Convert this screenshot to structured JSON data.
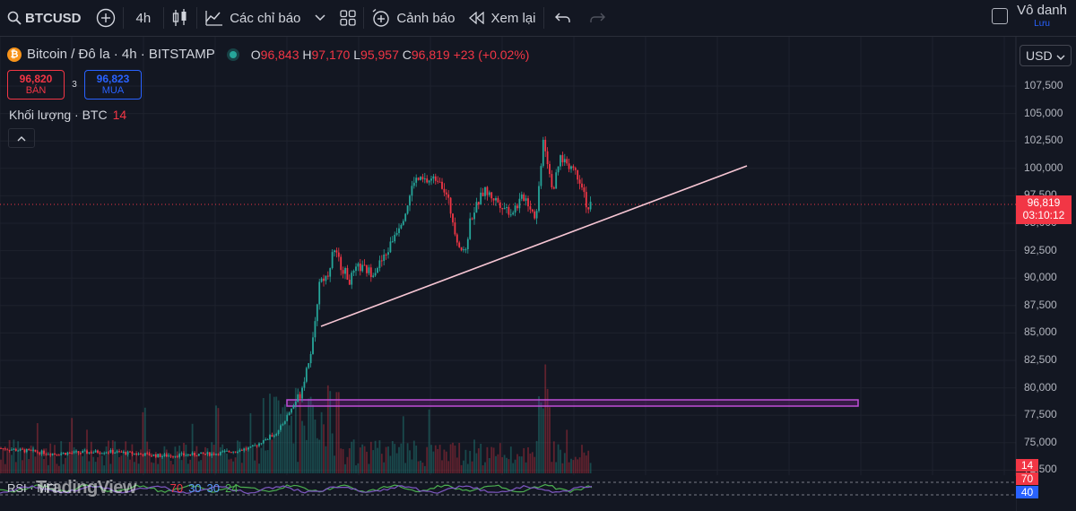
{
  "toolbar": {
    "symbol": "BTCUSD",
    "interval": "4h",
    "indicators_label": "Các chỉ báo",
    "alerts_label": "Cảnh báo",
    "replay_label": "Xem lại",
    "save_title": "Vô danh",
    "save_sub": "Lưu"
  },
  "legend": {
    "title": "Bitcoin / Đô la · 4h · BITSTAMP",
    "o_key": "O",
    "o_val": "96,843",
    "h_key": "H",
    "h_val": "97,170",
    "l_key": "L",
    "l_val": "95,957",
    "c_key": "C",
    "c_val": "96,819",
    "change": "+23 (+0.02%)"
  },
  "bidask": {
    "sell_price": "96,820",
    "sell_label": "BÁN",
    "spread": "3",
    "buy_price": "96,823",
    "buy_label": "MUA"
  },
  "volume": {
    "label": "Khối lượng · BTC",
    "value": "14"
  },
  "currency": "USD",
  "last_price": {
    "value": "96,819",
    "countdown": "03:10:12"
  },
  "price_axis": [
    "107,500",
    "105,000",
    "102,500",
    "100,000",
    "97,500",
    "95,000",
    "92,500",
    "90,000",
    "87,500",
    "85,000",
    "82,500",
    "80,000",
    "77,500",
    "75,000",
    "72,500"
  ],
  "rsi": {
    "label": "RSI · MFI",
    "v1": "70",
    "v2": "30",
    "v3": "30",
    "v4": "24"
  },
  "indicator_tags": {
    "volume": "14",
    "rsi_high": "70",
    "rsi_val": "40"
  },
  "watermark": "TradingView",
  "colors": {
    "up": "#26a69a",
    "down": "#f23645",
    "trendline": "#f7c6d4",
    "zone": "#9c27b0",
    "accent": "#2962ff"
  }
}
